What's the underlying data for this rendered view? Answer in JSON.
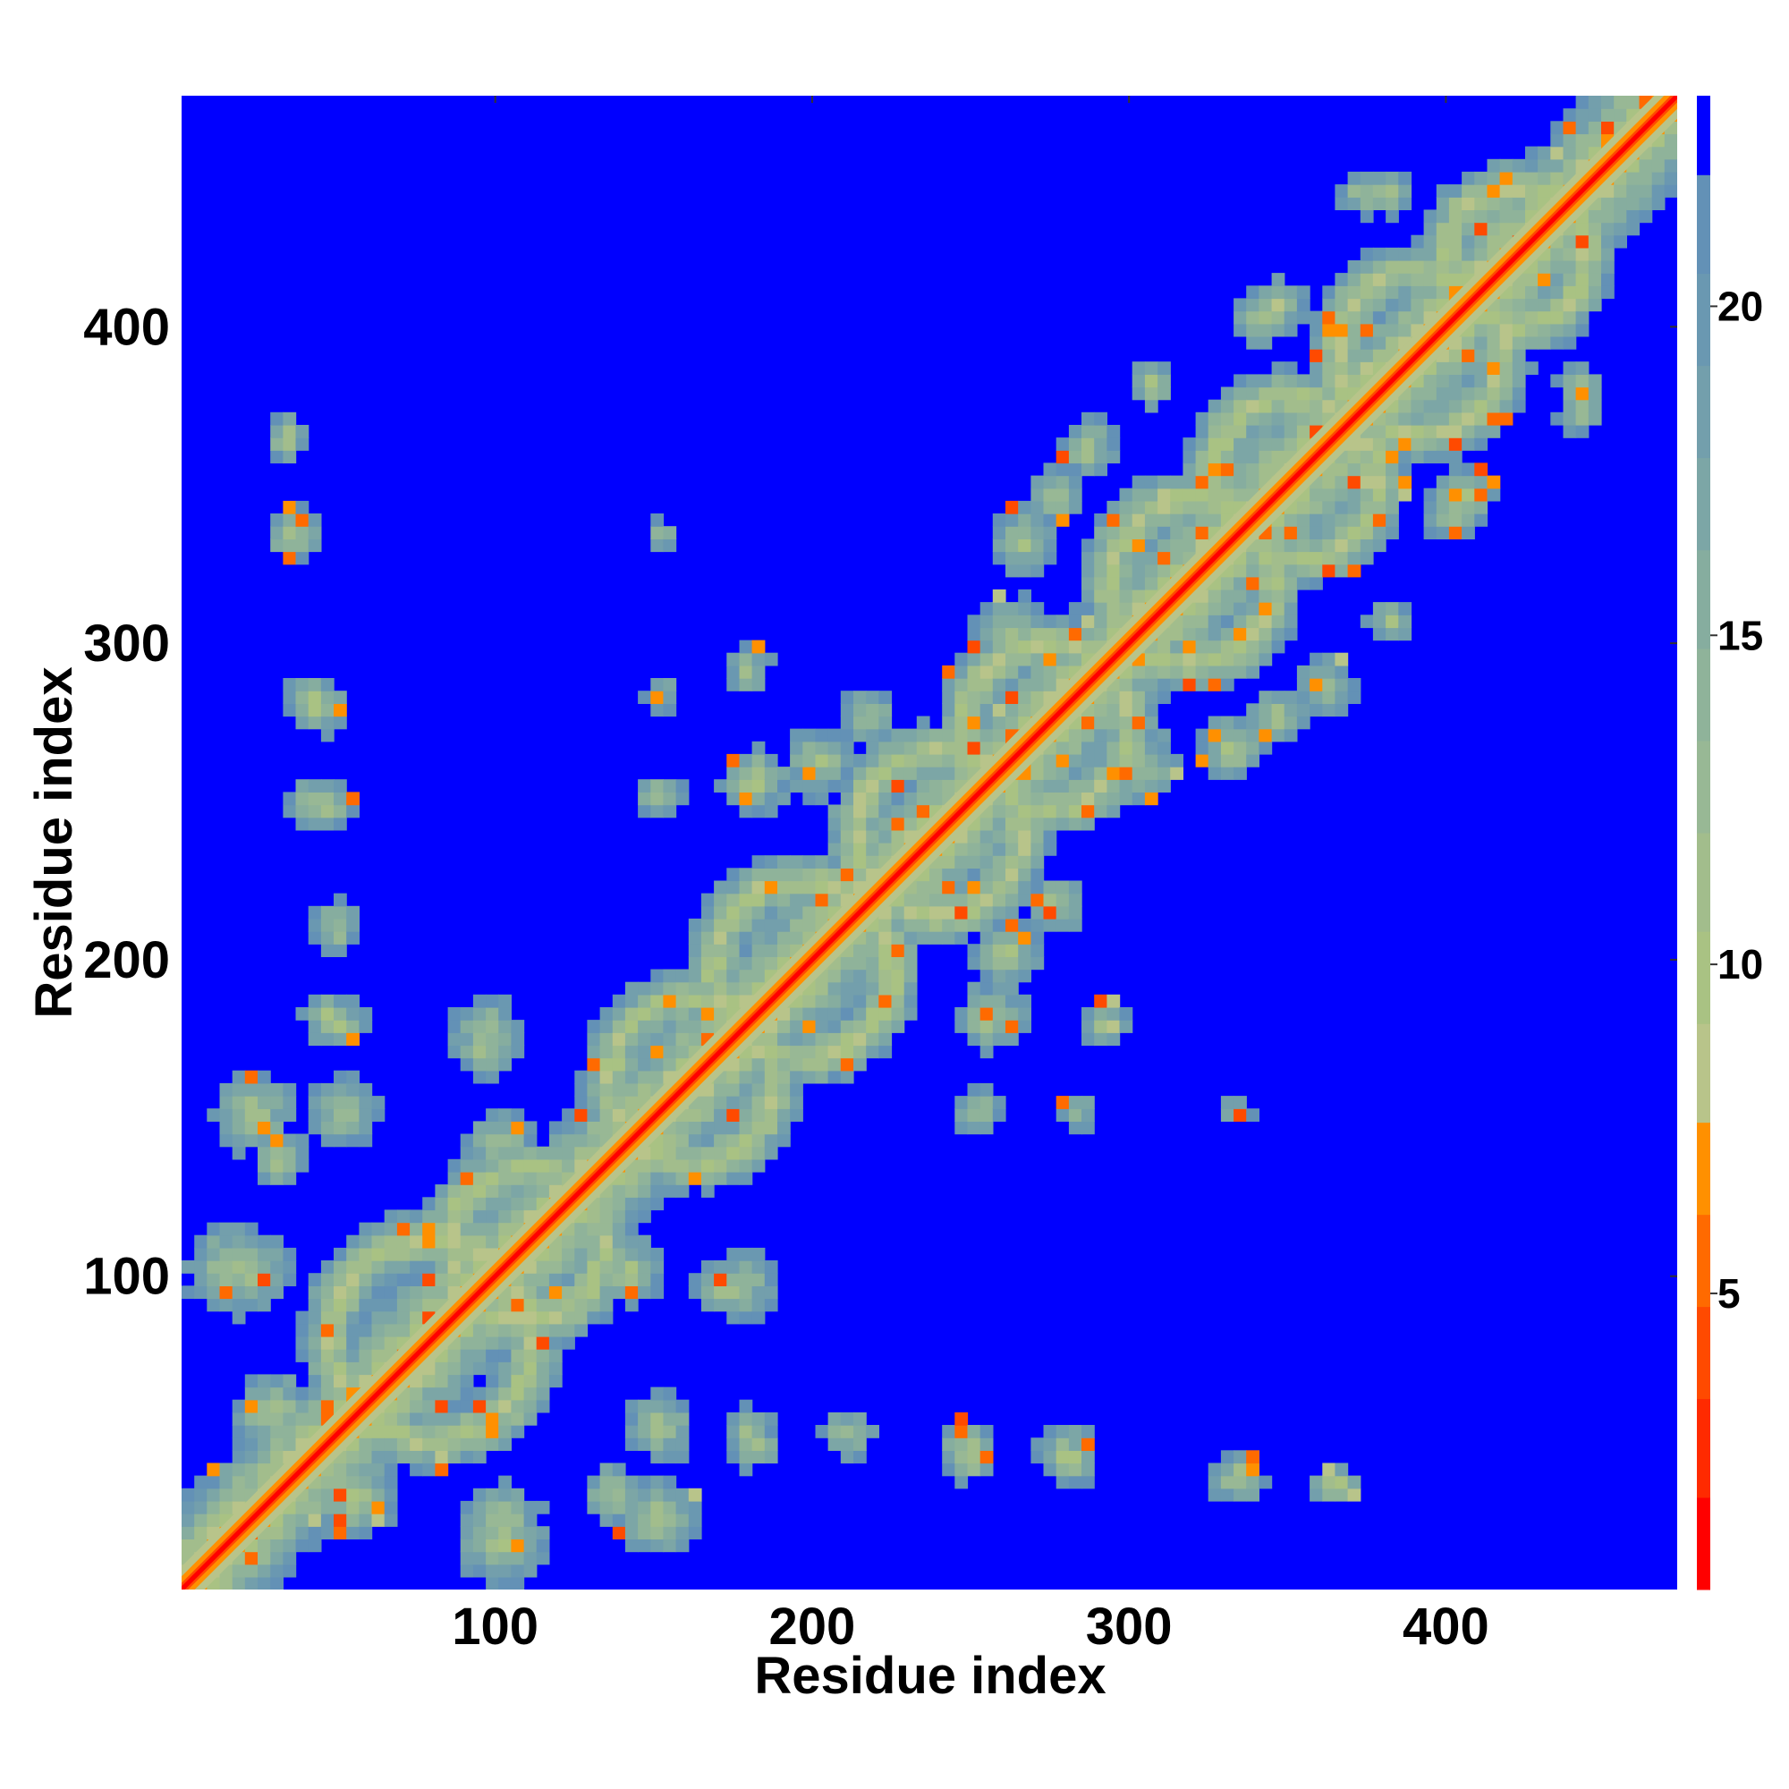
{
  "chart_data": {
    "type": "heatmap",
    "description_of_values": "pairwise residue distance map, symmetric, distances clipped at ~23",
    "xlabel": "Residue index",
    "ylabel": "Residue index",
    "xlim": [
      1,
      473
    ],
    "ylim": [
      1,
      473
    ],
    "x_ticks": [
      100,
      200,
      300,
      400
    ],
    "y_ticks": [
      100,
      200,
      300,
      400
    ],
    "x_tick_labels": [
      "100",
      "200",
      "300",
      "400"
    ],
    "y_tick_labels": [
      "100",
      "200",
      "300",
      "400"
    ],
    "colorbar": {
      "range": [
        0.5,
        23.2
      ],
      "ticks": [
        5,
        10,
        15,
        20
      ],
      "tick_labels": [
        "5",
        "10",
        "15",
        "20"
      ],
      "levels": [
        {
          "from": 0.5,
          "to": 1.9,
          "color": "#ff0000"
        },
        {
          "from": 1.9,
          "to": 3.4,
          "color": "#ff2a00"
        },
        {
          "from": 3.4,
          "to": 4.8,
          "color": "#ff4a00"
        },
        {
          "from": 4.8,
          "to": 6.2,
          "color": "#ff6a00"
        },
        {
          "from": 6.2,
          "to": 7.6,
          "color": "#ff9000"
        },
        {
          "from": 7.6,
          "to": 9.1,
          "color": "#b8c48a"
        },
        {
          "from": 9.1,
          "to": 10.5,
          "color": "#a9c283"
        },
        {
          "from": 10.5,
          "to": 12.0,
          "color": "#a2bd8c"
        },
        {
          "from": 12.0,
          "to": 13.4,
          "color": "#98b895"
        },
        {
          "from": 13.4,
          "to": 14.8,
          "color": "#8fb39a"
        },
        {
          "from": 14.8,
          "to": 16.3,
          "color": "#86ad9f"
        },
        {
          "from": 16.3,
          "to": 17.7,
          "color": "#7ca6a6"
        },
        {
          "from": 17.7,
          "to": 19.1,
          "color": "#739fac"
        },
        {
          "from": 19.1,
          "to": 20.5,
          "color": "#6a98b1"
        },
        {
          "from": 20.5,
          "to": 22.0,
          "color": "#6391b6"
        },
        {
          "from": 22.0,
          "to": 23.2,
          "color": "#0000ff"
        }
      ]
    },
    "background_value_color": "#0000ff",
    "diagonal": {
      "min_index": 1,
      "max_index": 473,
      "core_color": "#ff0000"
    },
    "near_diagonal_domain_rings": [
      {
        "center": [
          78,
          78
        ],
        "radius": 32
      },
      {
        "center": [
          108,
          108
        ],
        "radius": 24
      },
      {
        "center": [
          160,
          160
        ],
        "radius": 26
      },
      {
        "center": [
          195,
          195
        ],
        "radius": 28
      },
      {
        "center": [
          238,
          238
        ],
        "radius": 26
      },
      {
        "center": [
          272,
          272
        ],
        "radius": 26
      },
      {
        "center": [
          318,
          318
        ],
        "radius": 26
      },
      {
        "center": [
          350,
          350
        ],
        "radius": 26
      },
      {
        "center": [
          390,
          390
        ],
        "radius": 26
      },
      {
        "center": [
          420,
          420
        ],
        "radius": 22
      }
    ],
    "contact_patches": [
      {
        "x": 55,
        "y": 28,
        "size": 14
      },
      {
        "x": 100,
        "y": 15,
        "size": 16
      },
      {
        "x": 135,
        "y": 30,
        "size": 10
      },
      {
        "x": 150,
        "y": 50,
        "size": 12
      },
      {
        "x": 178,
        "y": 50,
        "size": 8
      },
      {
        "x": 208,
        "y": 48,
        "size": 8
      },
      {
        "x": 247,
        "y": 45,
        "size": 9
      },
      {
        "x": 278,
        "y": 42,
        "size": 10
      },
      {
        "x": 332,
        "y": 34,
        "size": 9
      },
      {
        "x": 362,
        "y": 32,
        "size": 7
      },
      {
        "x": 20,
        "y": 100,
        "size": 14
      },
      {
        "x": 22,
        "y": 150,
        "size": 14
      },
      {
        "x": 50,
        "y": 150,
        "size": 12
      },
      {
        "x": 45,
        "y": 180,
        "size": 9
      },
      {
        "x": 48,
        "y": 210,
        "size": 8
      },
      {
        "x": 40,
        "y": 248,
        "size": 8
      },
      {
        "x": 40,
        "y": 280,
        "size": 9
      },
      {
        "x": 35,
        "y": 333,
        "size": 9
      },
      {
        "x": 32,
        "y": 365,
        "size": 6
      },
      {
        "x": 150,
        "y": 333,
        "size": 5
      },
      {
        "x": 150,
        "y": 282,
        "size": 5
      },
      {
        "x": 140,
        "y": 100,
        "size": 12
      },
      {
        "x": 170,
        "y": 95,
        "size": 10
      },
      {
        "x": 95,
        "y": 175,
        "size": 12
      },
      {
        "x": 250,
        "y": 150,
        "size": 8
      },
      {
        "x": 282,
        "y": 150,
        "size": 6
      },
      {
        "x": 332,
        "y": 150,
        "size": 5
      },
      {
        "x": 180,
        "y": 255,
        "size": 12
      },
      {
        "x": 215,
        "y": 275,
        "size": 10
      },
      {
        "x": 260,
        "y": 200,
        "size": 12
      },
      {
        "x": 290,
        "y": 178,
        "size": 8
      },
      {
        "x": 300,
        "y": 260,
        "size": 14
      },
      {
        "x": 345,
        "y": 275,
        "size": 10
      },
      {
        "x": 265,
        "y": 330,
        "size": 12
      },
      {
        "x": 285,
        "y": 360,
        "size": 10
      },
      {
        "x": 340,
        "y": 400,
        "size": 10
      },
      {
        "x": 380,
        "y": 305,
        "size": 8
      },
      {
        "x": 405,
        "y": 345,
        "size": 10
      },
      {
        "x": 372,
        "y": 440,
        "size": 8
      },
      {
        "x": 440,
        "y": 380,
        "size": 8
      }
    ]
  }
}
